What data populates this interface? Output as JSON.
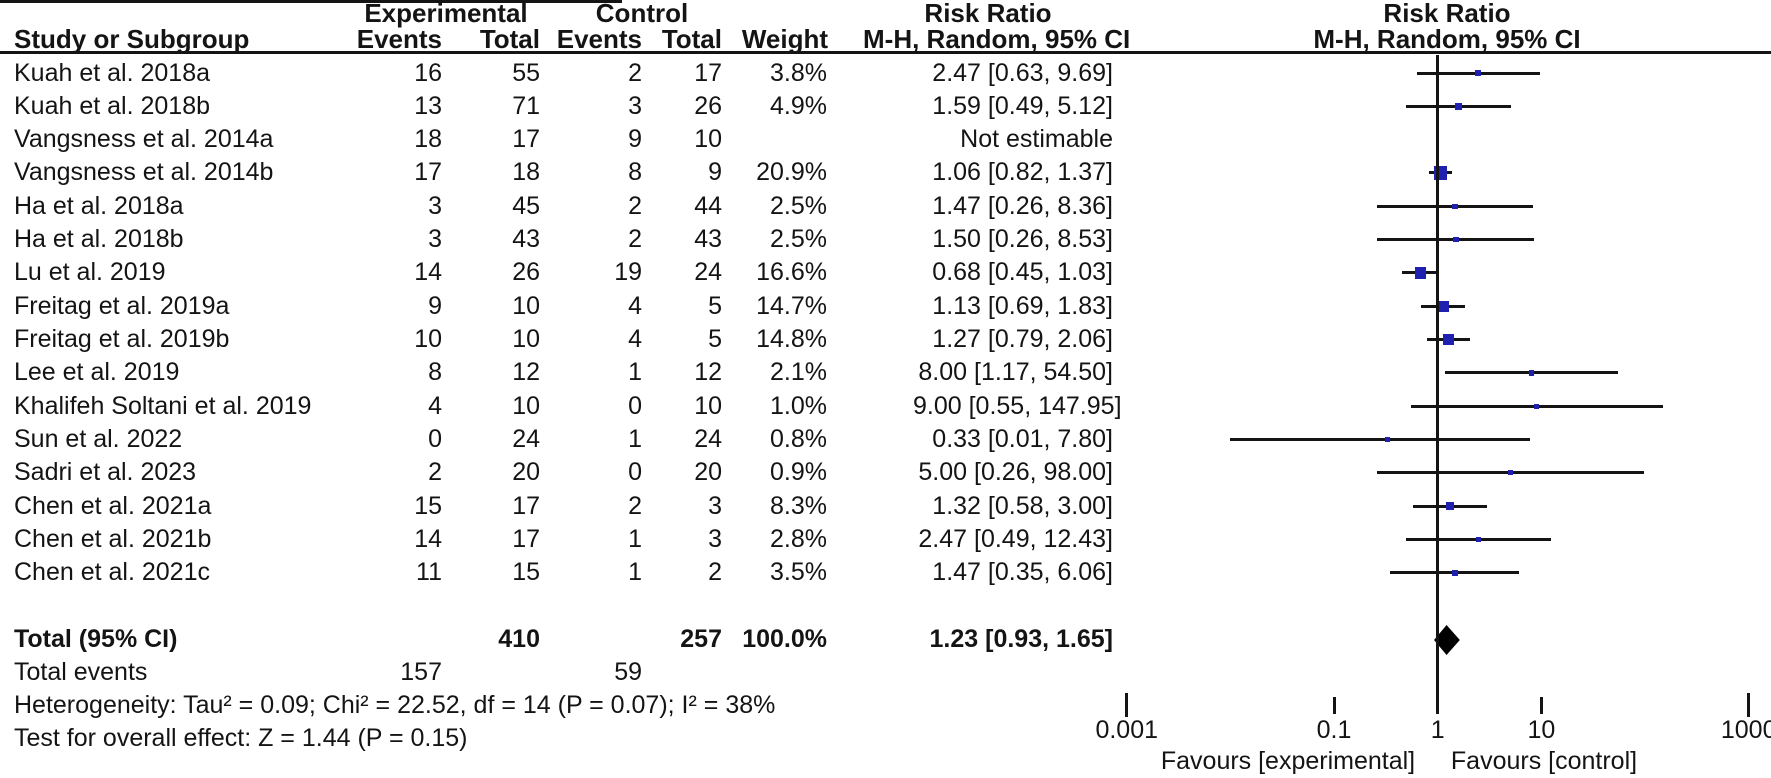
{
  "chart_data": {
    "type": "forest",
    "header": {
      "study": "Study or Subgroup",
      "experimental": "Experimental",
      "control": "Control",
      "events": "Events",
      "total": "Total",
      "weight": "Weight",
      "risk_ratio": "Risk Ratio",
      "method": "M-H, Random, 95% CI"
    },
    "studies": [
      {
        "name": "Kuah et al. 2018a",
        "exp_events": "16",
        "exp_total": "55",
        "ctrl_events": "2",
        "ctrl_total": "17",
        "weight_label": "3.8%",
        "weight": 3.8,
        "rr_label": "2.47 [0.63, 9.69]",
        "rr": 2.47,
        "lo": 0.63,
        "hi": 9.69,
        "estimable": true
      },
      {
        "name": "Kuah et al. 2018b",
        "exp_events": "13",
        "exp_total": "71",
        "ctrl_events": "3",
        "ctrl_total": "26",
        "weight_label": "4.9%",
        "weight": 4.9,
        "rr_label": "1.59 [0.49, 5.12]",
        "rr": 1.59,
        "lo": 0.49,
        "hi": 5.12,
        "estimable": true
      },
      {
        "name": "Vangsness et al. 2014a",
        "exp_events": "18",
        "exp_total": "17",
        "ctrl_events": "9",
        "ctrl_total": "10",
        "weight_label": "",
        "weight": 0,
        "rr_label": "Not estimable",
        "rr": null,
        "lo": null,
        "hi": null,
        "estimable": false
      },
      {
        "name": "Vangsness et al. 2014b",
        "exp_events": "17",
        "exp_total": "18",
        "ctrl_events": "8",
        "ctrl_total": "9",
        "weight_label": "20.9%",
        "weight": 20.9,
        "rr_label": "1.06 [0.82, 1.37]",
        "rr": 1.06,
        "lo": 0.82,
        "hi": 1.37,
        "estimable": true
      },
      {
        "name": "Ha et al. 2018a",
        "exp_events": "3",
        "exp_total": "45",
        "ctrl_events": "2",
        "ctrl_total": "44",
        "weight_label": "2.5%",
        "weight": 2.5,
        "rr_label": "1.47 [0.26, 8.36]",
        "rr": 1.47,
        "lo": 0.26,
        "hi": 8.36,
        "estimable": true
      },
      {
        "name": "Ha et al. 2018b",
        "exp_events": "3",
        "exp_total": "43",
        "ctrl_events": "2",
        "ctrl_total": "43",
        "weight_label": "2.5%",
        "weight": 2.5,
        "rr_label": "1.50 [0.26, 8.53]",
        "rr": 1.5,
        "lo": 0.26,
        "hi": 8.53,
        "estimable": true
      },
      {
        "name": "Lu et al. 2019",
        "exp_events": "14",
        "exp_total": "26",
        "ctrl_events": "19",
        "ctrl_total": "24",
        "weight_label": "16.6%",
        "weight": 16.6,
        "rr_label": "0.68 [0.45, 1.03]",
        "rr": 0.68,
        "lo": 0.45,
        "hi": 1.03,
        "estimable": true
      },
      {
        "name": "Freitag et al. 2019a",
        "exp_events": "9",
        "exp_total": "10",
        "ctrl_events": "4",
        "ctrl_total": "5",
        "weight_label": "14.7%",
        "weight": 14.7,
        "rr_label": "1.13 [0.69, 1.83]",
        "rr": 1.13,
        "lo": 0.69,
        "hi": 1.83,
        "estimable": true
      },
      {
        "name": "Freitag et al. 2019b",
        "exp_events": "10",
        "exp_total": "10",
        "ctrl_events": "4",
        "ctrl_total": "5",
        "weight_label": "14.8%",
        "weight": 14.8,
        "rr_label": "1.27 [0.79, 2.06]",
        "rr": 1.27,
        "lo": 0.79,
        "hi": 2.06,
        "estimable": true
      },
      {
        "name": "Lee et al. 2019",
        "exp_events": "8",
        "exp_total": "12",
        "ctrl_events": "1",
        "ctrl_total": "12",
        "weight_label": "2.1%",
        "weight": 2.1,
        "rr_label": "8.00 [1.17, 54.50]",
        "rr": 8.0,
        "lo": 1.17,
        "hi": 54.5,
        "estimable": true
      },
      {
        "name": "Khalifeh Soltani et al. 2019",
        "exp_events": "4",
        "exp_total": "10",
        "ctrl_events": "0",
        "ctrl_total": "10",
        "weight_label": "1.0%",
        "weight": 1.0,
        "rr_label": "9.00 [0.55, 147.95]",
        "rr": 9.0,
        "lo": 0.55,
        "hi": 147.95,
        "estimable": true
      },
      {
        "name": "Sun et al. 2022",
        "exp_events": "0",
        "exp_total": "24",
        "ctrl_events": "1",
        "ctrl_total": "24",
        "weight_label": "0.8%",
        "weight": 0.8,
        "rr_label": "0.33 [0.01, 7.80]",
        "rr": 0.33,
        "lo": 0.01,
        "hi": 7.8,
        "estimable": true
      },
      {
        "name": "Sadri et al. 2023",
        "exp_events": "2",
        "exp_total": "20",
        "ctrl_events": "0",
        "ctrl_total": "20",
        "weight_label": "0.9%",
        "weight": 0.9,
        "rr_label": "5.00 [0.26, 98.00]",
        "rr": 5.0,
        "lo": 0.26,
        "hi": 98.0,
        "estimable": true
      },
      {
        "name": "Chen et al. 2021a",
        "exp_events": "15",
        "exp_total": "17",
        "ctrl_events": "2",
        "ctrl_total": "3",
        "weight_label": "8.3%",
        "weight": 8.3,
        "rr_label": "1.32 [0.58, 3.00]",
        "rr": 1.32,
        "lo": 0.58,
        "hi": 3.0,
        "estimable": true
      },
      {
        "name": "Chen et al. 2021b",
        "exp_events": "14",
        "exp_total": "17",
        "ctrl_events": "1",
        "ctrl_total": "3",
        "weight_label": "2.8%",
        "weight": 2.8,
        "rr_label": "2.47 [0.49, 12.43]",
        "rr": 2.47,
        "lo": 0.49,
        "hi": 12.43,
        "estimable": true
      },
      {
        "name": "Chen et al. 2021c",
        "exp_events": "11",
        "exp_total": "15",
        "ctrl_events": "1",
        "ctrl_total": "2",
        "weight_label": "3.5%",
        "weight": 3.5,
        "rr_label": "1.47 [0.35, 6.06]",
        "rr": 1.47,
        "lo": 0.35,
        "hi": 6.06,
        "estimable": true
      }
    ],
    "total": {
      "label": "Total (95% CI)",
      "exp_total": "410",
      "ctrl_total": "257",
      "weight_label": "100.0%",
      "rr_label": "1.23 [0.93, 1.65]",
      "rr": 1.23,
      "lo": 0.93,
      "hi": 1.65
    },
    "total_events": {
      "label": "Total events",
      "exp": "157",
      "ctrl": "59"
    },
    "heterogeneity": "Heterogeneity: Tau² = 0.09; Chi² = 22.52, df = 14 (P = 0.07); I² = 38%",
    "overall_effect": "Test for overall effect: Z = 1.44 (P = 0.15)",
    "axis": {
      "scale": "log",
      "ticks": [
        0.001,
        0.1,
        1,
        10,
        1000
      ],
      "tick_labels": [
        "0.001",
        "0.1",
        "1",
        "10",
        "1000"
      ],
      "xmin": 0.001,
      "xmax": 1000
    },
    "favours_left": "Favours [experimental]",
    "favours_right": "Favours [control]",
    "colors": {
      "marker": "#1f1fb0",
      "line": "#141414",
      "diamond": "#000000"
    }
  }
}
